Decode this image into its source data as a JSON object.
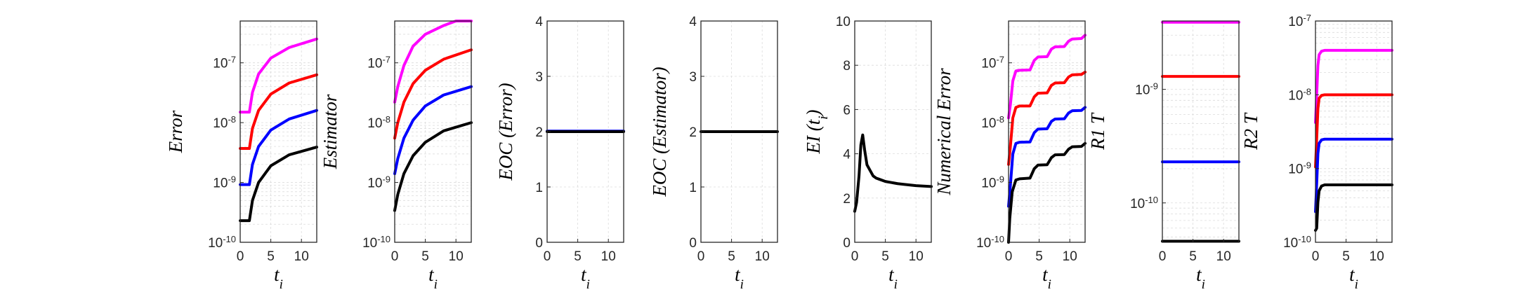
{
  "colors": {
    "black": "#000000",
    "blue": "#0000ff",
    "red": "#ff0000",
    "magenta": "#ff00ff"
  },
  "chart_data": [
    {
      "type": "line",
      "xlabel": "t_i",
      "ylabel": "Error",
      "yscale": "log",
      "xlim": [
        0,
        12.5
      ],
      "ylim": [
        1e-10,
        5e-07
      ],
      "xticks": [
        0,
        5,
        10
      ],
      "yticks": [
        1e-10,
        1e-09,
        1e-08,
        1e-07
      ],
      "yticklabels": [
        "10^-10",
        "10^-9",
        "10^-8",
        "10^-7"
      ],
      "grid": true,
      "series": [
        {
          "color": "magenta",
          "x": [
            0,
            1.5,
            2,
            3,
            5,
            8,
            12.5
          ],
          "y": [
            1.5e-08,
            1.5e-08,
            3.2e-08,
            6.5e-08,
            1.2e-07,
            1.8e-07,
            2.5e-07
          ]
        },
        {
          "color": "red",
          "x": [
            0,
            1.5,
            2,
            3,
            5,
            8,
            12.5
          ],
          "y": [
            3.7e-09,
            3.7e-09,
            8e-09,
            1.6e-08,
            3e-08,
            4.6e-08,
            6.3e-08
          ]
        },
        {
          "color": "blue",
          "x": [
            0,
            1.5,
            2,
            3,
            5,
            8,
            12.5
          ],
          "y": [
            9.2e-10,
            9.2e-10,
            2e-09,
            4e-09,
            7.5e-09,
            1.15e-08,
            1.6e-08
          ]
        },
        {
          "color": "black",
          "x": [
            0,
            1.5,
            2,
            3,
            5,
            8,
            12.5
          ],
          "y": [
            2.3e-10,
            2.3e-10,
            5e-10,
            1e-09,
            1.9e-09,
            2.9e-09,
            3.9e-09
          ]
        }
      ]
    },
    {
      "type": "line",
      "xlabel": "t_i",
      "ylabel": "Estimator",
      "yscale": "log",
      "xlim": [
        0,
        12.5
      ],
      "ylim": [
        1e-10,
        5e-07
      ],
      "xticks": [
        0,
        5,
        10
      ],
      "yticks": [
        1e-10,
        1e-09,
        1e-08,
        1e-07
      ],
      "yticklabels": [
        "10^-10",
        "10^-9",
        "10^-8",
        "10^-7"
      ],
      "grid": true,
      "series": [
        {
          "color": "magenta",
          "x": [
            0,
            0.5,
            1.5,
            3,
            5,
            8,
            10,
            12.5
          ],
          "y": [
            2.2e-08,
            4e-08,
            9e-08,
            1.9e-07,
            3e-07,
            4.2e-07,
            5e-07,
            5e-07
          ]
        },
        {
          "color": "red",
          "x": [
            0,
            0.5,
            1.5,
            3,
            5,
            8,
            12.5
          ],
          "y": [
            5.5e-09,
            1e-08,
            2.2e-08,
            4.5e-08,
            7.5e-08,
            1.15e-07,
            1.65e-07
          ]
        },
        {
          "color": "blue",
          "x": [
            0,
            0.5,
            1.5,
            3,
            5,
            8,
            12.5
          ],
          "y": [
            1.4e-09,
            2.5e-09,
            5.5e-09,
            1.1e-08,
            1.9e-08,
            2.9e-08,
            4e-08
          ]
        },
        {
          "color": "black",
          "x": [
            0,
            0.5,
            1.5,
            3,
            5,
            8,
            12.5
          ],
          "y": [
            3.4e-10,
            6.3e-10,
            1.4e-09,
            2.8e-09,
            4.7e-09,
            7.3e-09,
            1e-08
          ]
        }
      ]
    },
    {
      "type": "line",
      "xlabel": "t_i",
      "ylabel": "EOC (Error)",
      "yscale": "linear",
      "xlim": [
        0,
        12.5
      ],
      "ylim": [
        0,
        4
      ],
      "xticks": [
        0,
        5,
        10
      ],
      "yticks": [
        0,
        1,
        2,
        3,
        4
      ],
      "yticklabels": [
        "0",
        "1",
        "2",
        "3",
        "4"
      ],
      "grid": true,
      "series": [
        {
          "color": "blue",
          "x": [
            0,
            12.5
          ],
          "y": [
            2.01,
            2.01
          ]
        },
        {
          "color": "black",
          "x": [
            0,
            12.5
          ],
          "y": [
            2.0,
            2.0
          ]
        }
      ]
    },
    {
      "type": "line",
      "xlabel": "t_i",
      "ylabel": "EOC (Estimator)",
      "yscale": "linear",
      "xlim": [
        0,
        12.5
      ],
      "ylim": [
        0,
        4
      ],
      "xticks": [
        0,
        5,
        10
      ],
      "yticks": [
        0,
        1,
        2,
        3,
        4
      ],
      "yticklabels": [
        "0",
        "1",
        "2",
        "3",
        "4"
      ],
      "grid": true,
      "series": [
        {
          "color": "black",
          "x": [
            0,
            12.5
          ],
          "y": [
            2.0,
            2.0
          ]
        }
      ]
    },
    {
      "type": "line",
      "xlabel": "t_i",
      "ylabel": "EI (t_i)",
      "yscale": "linear",
      "xlim": [
        0,
        12.5
      ],
      "ylim": [
        0,
        10
      ],
      "xticks": [
        0,
        5,
        10
      ],
      "yticks": [
        0,
        2,
        4,
        6,
        8,
        10
      ],
      "yticklabels": [
        "0",
        "2",
        "4",
        "6",
        "8",
        "10"
      ],
      "grid": true,
      "series": [
        {
          "color": "black",
          "x": [
            0,
            0.3,
            0.7,
            1.0,
            1.3,
            1.6,
            2.0,
            2.5,
            3.0,
            3.5,
            4.0,
            5.0,
            6.0,
            7.0,
            8.0,
            10.0,
            12.5
          ],
          "y": [
            1.4,
            1.8,
            3.0,
            4.4,
            4.85,
            4.2,
            3.5,
            3.25,
            3.0,
            2.9,
            2.85,
            2.75,
            2.7,
            2.65,
            2.62,
            2.56,
            2.52
          ]
        }
      ]
    },
    {
      "type": "line",
      "xlabel": "t_i",
      "ylabel": "Numerical Error",
      "yscale": "log",
      "xlim": [
        0,
        12.5
      ],
      "ylim": [
        1e-10,
        5e-07
      ],
      "xticks": [
        0,
        5,
        10
      ],
      "yticks": [
        1e-10,
        1e-09,
        1e-08,
        1e-07
      ],
      "yticklabels": [
        "10^-10",
        "10^-9",
        "10^-8",
        "10^-7"
      ],
      "grid": true,
      "series": [
        {
          "color": "magenta",
          "x": [
            0,
            0.3,
            0.7,
            1.2,
            1.8,
            3.5,
            4.2,
            4.8,
            6.3,
            7.0,
            7.6,
            9.1,
            9.8,
            10.4,
            11.9,
            12.5
          ],
          "y": [
            1.2e-08,
            2e-08,
            5e-08,
            7.3e-08,
            7.5e-08,
            7.6e-08,
            1.1e-07,
            1.25e-07,
            1.27e-07,
            1.7e-07,
            1.85e-07,
            1.87e-07,
            2.3e-07,
            2.5e-07,
            2.55e-07,
            2.9e-07
          ]
        },
        {
          "color": "red",
          "x": [
            0,
            0.3,
            0.7,
            1.2,
            1.8,
            3.5,
            4.2,
            4.8,
            6.3,
            7.0,
            7.6,
            9.1,
            9.8,
            10.4,
            11.9,
            12.5
          ],
          "y": [
            2e-09,
            4e-09,
            1.2e-08,
            1.8e-08,
            1.9e-08,
            1.9e-08,
            2.7e-08,
            3.1e-08,
            3.15e-08,
            4.2e-08,
            4.6e-08,
            4.65e-08,
            5.8e-08,
            6.3e-08,
            6.4e-08,
            7e-08
          ]
        },
        {
          "color": "blue",
          "x": [
            0,
            0.3,
            0.7,
            1.2,
            1.8,
            3.5,
            4.2,
            4.8,
            6.3,
            7.0,
            7.6,
            9.1,
            9.8,
            10.4,
            11.9,
            12.5
          ],
          "y": [
            4e-10,
            9e-10,
            3e-09,
            4.5e-09,
            4.7e-09,
            4.75e-09,
            6.8e-09,
            7.8e-09,
            7.9e-09,
            1.05e-08,
            1.15e-08,
            1.16e-08,
            1.45e-08,
            1.58e-08,
            1.6e-08,
            1.8e-08
          ]
        },
        {
          "color": "black",
          "x": [
            0,
            0.2,
            0.6,
            1.2,
            1.8,
            3.5,
            4.2,
            4.8,
            6.3,
            7.0,
            7.6,
            9.1,
            9.8,
            10.4,
            11.9,
            12.5
          ],
          "y": [
            1e-10,
            2.5e-10,
            7e-10,
            1.1e-09,
            1.15e-09,
            1.18e-09,
            1.7e-09,
            1.95e-09,
            1.98e-09,
            2.6e-09,
            2.9e-09,
            2.92e-09,
            3.6e-09,
            3.95e-09,
            4e-09,
            4.5e-09
          ]
        }
      ]
    },
    {
      "type": "line",
      "xlabel": "t_i",
      "ylabel": "R1 T",
      "yscale": "log",
      "xlim": [
        0,
        12.5
      ],
      "ylim": [
        4.5e-11,
        4e-09
      ],
      "xticks": [
        0,
        5,
        10
      ],
      "yticks": [
        1e-10,
        1e-09
      ],
      "yticklabels": [
        "10^-10",
        "10^-9"
      ],
      "grid": true,
      "series": [
        {
          "color": "magenta",
          "x": [
            0,
            12.5
          ],
          "y": [
            3.9e-09,
            3.9e-09
          ]
        },
        {
          "color": "red",
          "x": [
            0,
            12.5
          ],
          "y": [
            1.3e-09,
            1.3e-09
          ]
        },
        {
          "color": "blue",
          "x": [
            0,
            12.5
          ],
          "y": [
            2.3e-10,
            2.3e-10
          ]
        },
        {
          "color": "black",
          "x": [
            0,
            12.5
          ],
          "y": [
            4.6e-11,
            4.6e-11
          ]
        }
      ]
    },
    {
      "type": "line",
      "xlabel": "t_i",
      "ylabel": "R2 T",
      "yscale": "log",
      "xlim": [
        0,
        12.5
      ],
      "ylim": [
        1e-10,
        1e-07
      ],
      "xticks": [
        0,
        5,
        10
      ],
      "yticks": [
        1e-10,
        1e-09,
        1e-08,
        1e-07
      ],
      "yticklabels": [
        "10^-10",
        "10^-9",
        "10^-8",
        "10^-7"
      ],
      "grid": true,
      "series": [
        {
          "color": "magenta",
          "x": [
            0,
            0.2,
            0.4,
            0.6,
            1.0,
            1.5,
            12.5
          ],
          "y": [
            4.2e-09,
            1e-08,
            2.5e-08,
            3.5e-08,
            3.9e-08,
            4e-08,
            4e-08
          ]
        },
        {
          "color": "red",
          "x": [
            0,
            0.2,
            0.4,
            0.6,
            1.0,
            1.5,
            12.5
          ],
          "y": [
            1.05e-09,
            2.5e-09,
            6.5e-09,
            9e-09,
            9.8e-09,
            1e-08,
            1e-08
          ]
        },
        {
          "color": "blue",
          "x": [
            0,
            0.2,
            0.4,
            0.6,
            1.0,
            1.5,
            12.5
          ],
          "y": [
            2.6e-10,
            6.2e-10,
            1.6e-09,
            2.2e-09,
            2.45e-09,
            2.5e-09,
            2.5e-09
          ]
        },
        {
          "color": "black",
          "x": [
            0,
            0.2,
            0.4,
            0.6,
            1.0,
            1.5,
            12.5
          ],
          "y": [
            1.45e-10,
            1.55e-10,
            3.5e-10,
            5e-10,
            5.8e-10,
            6e-10,
            6e-10
          ]
        }
      ]
    }
  ]
}
